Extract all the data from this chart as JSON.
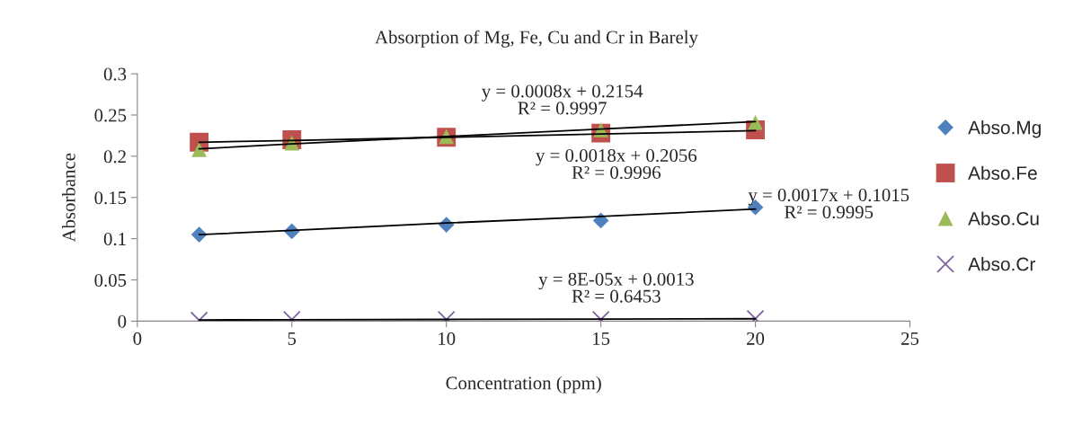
{
  "chart_data": {
    "type": "scatter",
    "title": "Absorption of Mg, Fe, Cu and Cr in Barely",
    "xlabel": "Concentration (ppm)",
    "ylabel": "Absorbance",
    "x": [
      2,
      5,
      10,
      15,
      20
    ],
    "series": [
      {
        "name": "Abso.Mg",
        "color": "#4f81bd",
        "marker": "diamond",
        "values": [
          0.105,
          0.109,
          0.117,
          0.122,
          0.138
        ]
      },
      {
        "name": "Abso.Fe",
        "color": "#c0504d",
        "marker": "square",
        "values": [
          0.217,
          0.22,
          0.223,
          0.228,
          0.232
        ]
      },
      {
        "name": "Abso.Cu",
        "color": "#9bbb59",
        "marker": "triangle",
        "values": [
          0.208,
          0.216,
          0.224,
          0.232,
          0.241
        ]
      },
      {
        "name": "Abso.Cr",
        "color": "#8064a2",
        "marker": "cross",
        "values": [
          0.001,
          0.002,
          0.002,
          0.002,
          0.003
        ]
      },
      {
        "type": "line",
        "color": "#000000",
        "marker": "none",
        "values": [
          0.105,
          0.11,
          0.119,
          0.127,
          0.136
        ]
      },
      {
        "type": "line",
        "color": "#000000",
        "marker": "none",
        "values": [
          0.217,
          0.219,
          0.223,
          0.227,
          0.231
        ]
      },
      {
        "type": "line",
        "color": "#000000",
        "marker": "none",
        "values": [
          0.209,
          0.215,
          0.224,
          0.233,
          0.242
        ]
      },
      {
        "type": "line",
        "color": "#000000",
        "marker": "none",
        "values": [
          0.0015,
          0.0017,
          0.0021,
          0.0025,
          0.0029
        ]
      }
    ],
    "annotations": [
      "y = 0.0008x + 0.2154\nR² = 0.9997",
      "y = 0.0018x + 0.2056\nR² = 0.9996",
      "y = 0.0017x + 0.1015\nR² = 0.9995",
      "y = 8E-05x + 0.0013\nR² = 0.6453"
    ],
    "xlim": [
      0,
      25
    ],
    "ylim": [
      0,
      0.3
    ],
    "xticks": [
      0,
      5,
      10,
      15,
      20,
      25
    ],
    "yticks": [
      0,
      0.05,
      0.1,
      0.15,
      0.2,
      0.25,
      0.3
    ],
    "grid": false,
    "legend": "right"
  }
}
